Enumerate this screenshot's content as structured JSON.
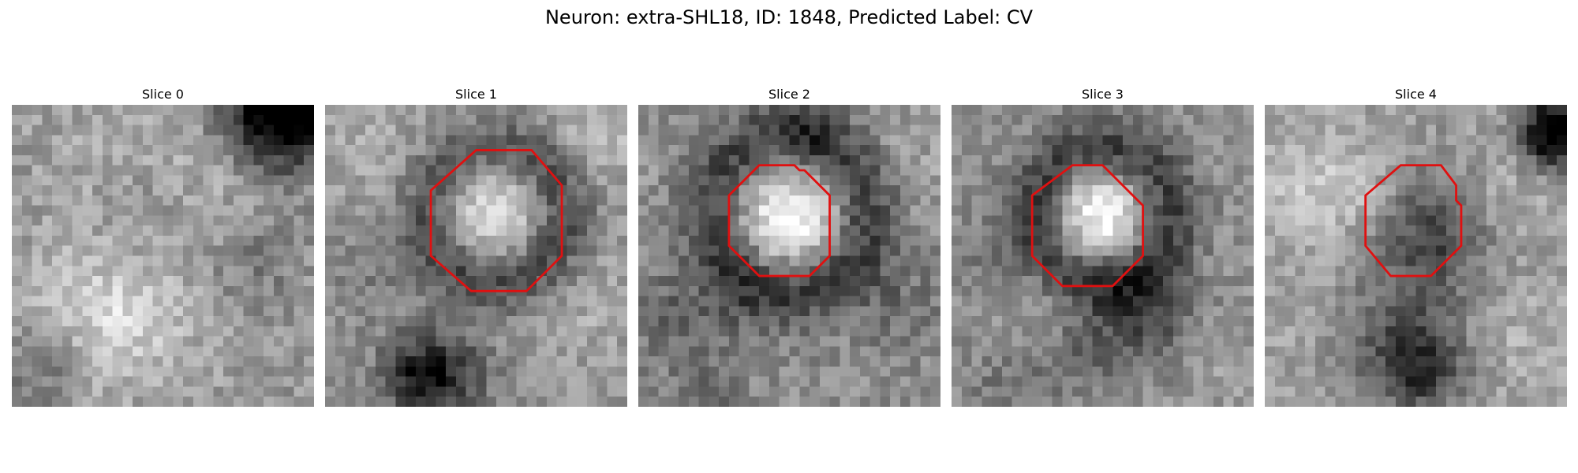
{
  "figure": {
    "title": "Neuron: extra-SHL18, ID: 1848, Predicted Label: CV",
    "contour_color": "#e01010",
    "colormap": "grayscale",
    "panels": [
      {
        "title": "Slice 0",
        "texture": "bright noisy field, dark corner at top-right, darker spot lower-left",
        "contour": []
      },
      {
        "title": "Slice 1",
        "texture": "bright cell body in center surrounded by dark ring, dark blob at bottom",
        "contour": [
          [
            15,
            4.5
          ],
          [
            20.5,
            4.5
          ],
          [
            23.5,
            8
          ],
          [
            23.5,
            15
          ],
          [
            20,
            18.5
          ],
          [
            14.5,
            18.5
          ],
          [
            10.5,
            15
          ],
          [
            10.5,
            8.5
          ]
        ]
      },
      {
        "title": "Slice 2",
        "texture": "bright cell body slightly upper-right of center, dark surrounding ring",
        "contour": [
          [
            12,
            6
          ],
          [
            15.5,
            6
          ],
          [
            16,
            6.5
          ],
          [
            16.5,
            6.5
          ],
          [
            19,
            9
          ],
          [
            19,
            15
          ],
          [
            17,
            17
          ],
          [
            12,
            17
          ],
          [
            9,
            14
          ],
          [
            9,
            9
          ]
        ]
      },
      {
        "title": "Slice 3",
        "texture": "bright nucleus upper-center, dark ring, dark band lower-right",
        "contour": [
          [
            12,
            6
          ],
          [
            15,
            6
          ],
          [
            19,
            10
          ],
          [
            19,
            15
          ],
          [
            16,
            18
          ],
          [
            11,
            18
          ],
          [
            8,
            15
          ],
          [
            8,
            9
          ]
        ]
      },
      {
        "title": "Slice 4",
        "texture": "darker region within contour, bright upper-left, dark bottom",
        "contour": [
          [
            13.5,
            6
          ],
          [
            17.5,
            6
          ],
          [
            19,
            8
          ],
          [
            19,
            9.5
          ],
          [
            19.5,
            10
          ],
          [
            19.5,
            14
          ],
          [
            16.5,
            17
          ],
          [
            12.5,
            17
          ],
          [
            10,
            14
          ],
          [
            10,
            9
          ]
        ]
      }
    ]
  }
}
